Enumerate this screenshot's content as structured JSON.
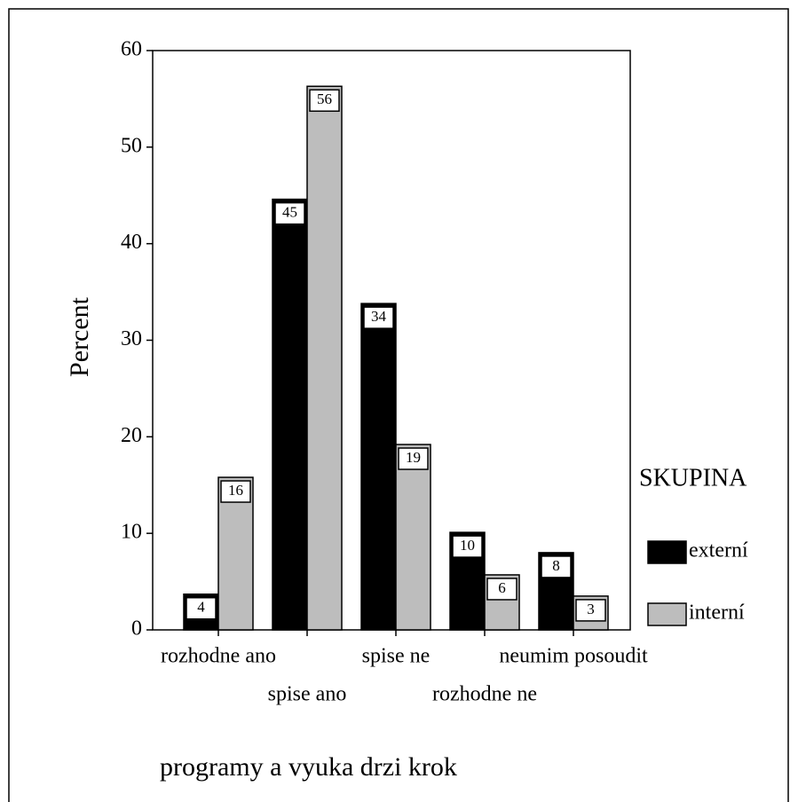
{
  "chart_data": {
    "type": "bar",
    "title": "programy a vyuka drzi krok",
    "y_label": "Percent",
    "legend_title": "SKUPINA",
    "categories": [
      "rozhodne ano",
      "spise ano",
      "spise ne",
      "rozhodne ne",
      "neumim posoudit"
    ],
    "series": [
      {
        "name": "externí",
        "color": "#000000",
        "values": [
          3.7,
          44.6,
          33.8,
          10.1,
          8.0
        ],
        "value_labels": [
          "4",
          "45",
          "34",
          "10",
          "8"
        ]
      },
      {
        "name": "interní",
        "color": "#bdbdbd",
        "values": [
          15.8,
          56.3,
          19.2,
          5.7,
          3.5
        ],
        "value_labels": [
          "16",
          "56",
          "19",
          "6",
          "3"
        ]
      }
    ],
    "ylim": [
      0,
      60
    ],
    "yticks": [
      0,
      10,
      20,
      30,
      40,
      50,
      60
    ],
    "grid": false,
    "legend": "right"
  }
}
